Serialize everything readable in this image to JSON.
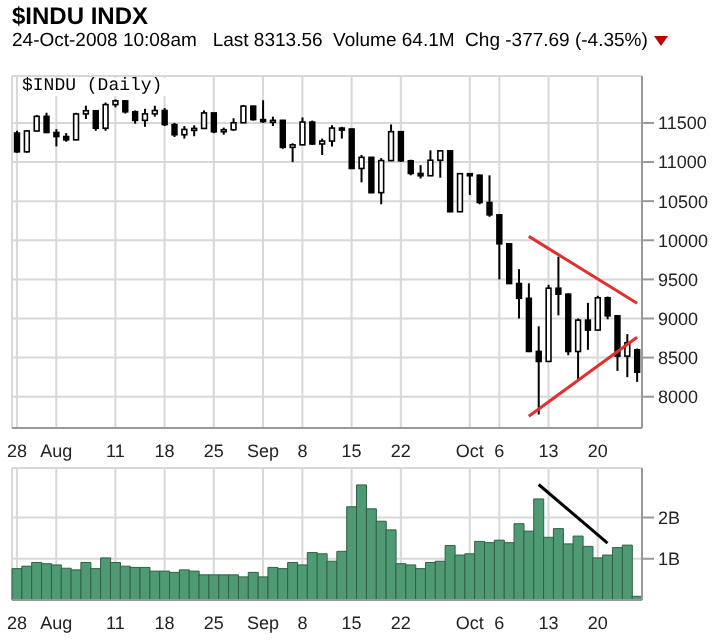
{
  "chart_data": [
    {
      "type": "candlestick",
      "title": "$INDU INDX",
      "subtitle": "24-Oct-2008 10:08am   Last 8313.56  Volume 64.1M  Chg -377.69 (-4.35%)",
      "annotations": [
        "$INDU (Daily)"
      ],
      "color": "#000000",
      "categories": [
        "28",
        null,
        null,
        null,
        "Aug",
        null,
        null,
        null,
        null,
        null,
        "11",
        null,
        null,
        null,
        null,
        "18",
        null,
        null,
        null,
        null,
        "25",
        null,
        null,
        null,
        null,
        "Sep",
        null,
        null,
        null,
        "8",
        null,
        null,
        null,
        null,
        "15",
        null,
        null,
        null,
        null,
        "22",
        null,
        null,
        null,
        null,
        null,
        null,
        "Oct",
        null,
        null,
        "6",
        null,
        null,
        null,
        null,
        "13",
        null,
        null,
        null,
        null,
        "20",
        null,
        null,
        null,
        null
      ],
      "ohlc": [
        [
          11370,
          11400,
          11120,
          11131
        ],
        [
          11131,
          11410,
          11120,
          11397
        ],
        [
          11397,
          11600,
          11390,
          11584
        ],
        [
          11584,
          11630,
          11370,
          11378
        ],
        [
          11378,
          11420,
          11200,
          11326
        ],
        [
          11326,
          11370,
          11260,
          11284
        ],
        [
          11284,
          11630,
          11280,
          11615
        ],
        [
          11615,
          11720,
          11550,
          11656
        ],
        [
          11656,
          11660,
          11400,
          11432
        ],
        [
          11432,
          11760,
          11400,
          11734
        ],
        [
          11734,
          11800,
          11700,
          11782
        ],
        [
          11782,
          11790,
          11620,
          11642
        ],
        [
          11642,
          11660,
          11490,
          11533
        ],
        [
          11533,
          11680,
          11450,
          11616
        ],
        [
          11616,
          11720,
          11580,
          11659
        ],
        [
          11659,
          11690,
          11460,
          11479
        ],
        [
          11479,
          11500,
          11320,
          11349
        ],
        [
          11349,
          11460,
          11300,
          11417
        ],
        [
          11417,
          11470,
          11330,
          11430
        ],
        [
          11430,
          11660,
          11420,
          11628
        ],
        [
          11628,
          11630,
          11370,
          11387
        ],
        [
          11387,
          11440,
          11350,
          11413
        ],
        [
          11413,
          11560,
          11400,
          11502
        ],
        [
          11502,
          11730,
          11500,
          11715
        ],
        [
          11715,
          11720,
          11530,
          11543
        ],
        [
          11543,
          11790,
          11500,
          11517
        ],
        [
          11517,
          11580,
          11460,
          11533
        ],
        [
          11533,
          11540,
          11170,
          11188
        ],
        [
          11188,
          11240,
          11000,
          11220
        ],
        [
          11220,
          11570,
          11220,
          11511
        ],
        [
          11511,
          11530,
          11220,
          11231
        ],
        [
          11231,
          11300,
          11090,
          11268
        ],
        [
          11268,
          11470,
          11200,
          11434
        ],
        [
          11434,
          11450,
          11300,
          11422
        ],
        [
          11422,
          11430,
          10910,
          10918
        ],
        [
          10918,
          11090,
          10740,
          11060
        ],
        [
          11060,
          11060,
          10600,
          10609
        ],
        [
          10609,
          11050,
          10460,
          11019
        ],
        [
          11019,
          11480,
          11010,
          11388
        ],
        [
          11388,
          11390,
          11000,
          11016
        ],
        [
          11016,
          11030,
          10830,
          10854
        ],
        [
          10854,
          10960,
          10790,
          10825
        ],
        [
          10825,
          11150,
          10820,
          11023
        ],
        [
          11023,
          11150,
          10800,
          11143
        ],
        [
          11143,
          11150,
          10360,
          10365
        ],
        [
          10365,
          10860,
          10360,
          10851
        ],
        [
          10851,
          10860,
          10580,
          10831
        ],
        [
          10831,
          10840,
          10460,
          10483
        ],
        [
          10483,
          10830,
          10300,
          10325
        ],
        [
          10325,
          10330,
          9500,
          9955
        ],
        [
          9955,
          9960,
          9440,
          9447
        ],
        [
          9447,
          9630,
          9000,
          9258
        ],
        [
          9258,
          9450,
          8570,
          8579
        ],
        [
          8579,
          8900,
          7773,
          8451
        ],
        [
          8451,
          9430,
          8450,
          9387
        ],
        [
          9387,
          9790,
          9040,
          9311
        ],
        [
          9311,
          9320,
          8530,
          8578
        ],
        [
          8578,
          9000,
          8200,
          8979
        ],
        [
          8979,
          9200,
          8600,
          8852
        ],
        [
          8852,
          9290,
          8850,
          9265
        ],
        [
          9265,
          9280,
          8990,
          9034
        ],
        [
          9034,
          9040,
          8330,
          8519
        ],
        [
          8519,
          8800,
          8250,
          8691
        ],
        [
          8600,
          8616,
          8190,
          8314
        ]
      ],
      "series": [
        {
          "type": "line",
          "color": "#e03030",
          "values": [
            null,
            null,
            null,
            null,
            null,
            null,
            null,
            null,
            null,
            null,
            null,
            null,
            null,
            null,
            null,
            null,
            null,
            null,
            null,
            null,
            null,
            null,
            null,
            null,
            null,
            null,
            null,
            null,
            null,
            null,
            null,
            null,
            null,
            null,
            null,
            null,
            null,
            null,
            null,
            null,
            null,
            null,
            null,
            null,
            null,
            null,
            null,
            null,
            null,
            null,
            null,
            null,
            10050,
            null,
            null,
            null,
            null,
            null,
            null,
            null,
            null,
            null,
            null,
            9194
          ]
        },
        {
          "type": "line",
          "color": "#e03030",
          "values": [
            null,
            null,
            null,
            null,
            null,
            null,
            null,
            null,
            null,
            null,
            null,
            null,
            null,
            null,
            null,
            null,
            null,
            null,
            null,
            null,
            null,
            null,
            null,
            null,
            null,
            null,
            null,
            null,
            null,
            null,
            null,
            null,
            null,
            null,
            null,
            null,
            null,
            null,
            null,
            null,
            null,
            null,
            null,
            null,
            null,
            null,
            null,
            null,
            null,
            null,
            null,
            null,
            7750,
            null,
            null,
            null,
            null,
            null,
            null,
            null,
            null,
            null,
            null,
            8760
          ]
        }
      ],
      "ylim": [
        7600,
        12100
      ],
      "yticks": [
        8000,
        8500,
        9000,
        9500,
        10000,
        10500,
        11000,
        11500
      ],
      "grid": true
    },
    {
      "type": "bar",
      "categories": [
        "28",
        null,
        null,
        null,
        "Aug",
        null,
        null,
        null,
        null,
        null,
        "11",
        null,
        null,
        null,
        null,
        "18",
        null,
        null,
        null,
        null,
        "25",
        null,
        null,
        null,
        null,
        "Sep",
        null,
        null,
        null,
        "8",
        null,
        null,
        null,
        null,
        "15",
        null,
        null,
        null,
        null,
        "22",
        null,
        null,
        null,
        null,
        null,
        null,
        "Oct",
        null,
        null,
        "6",
        null,
        null,
        null,
        null,
        "13",
        null,
        null,
        null,
        null,
        "20",
        null,
        null,
        null,
        null
      ],
      "series": [
        {
          "type": "bar",
          "color": "#4f9a72",
          "values": [
            0.76,
            0.82,
            0.91,
            0.88,
            0.85,
            0.77,
            0.73,
            0.91,
            0.76,
            1.02,
            0.91,
            0.82,
            0.79,
            0.79,
            0.7,
            0.7,
            0.67,
            0.73,
            0.7,
            0.61,
            0.61,
            0.61,
            0.61,
            0.56,
            0.67,
            0.56,
            0.79,
            0.76,
            0.91,
            0.85,
            1.15,
            1.12,
            0.94,
            1.18,
            2.26,
            2.79,
            2.21,
            1.91,
            1.7,
            0.88,
            0.85,
            0.76,
            0.91,
            0.94,
            1.32,
            1.09,
            1.12,
            1.42,
            1.39,
            1.45,
            1.39,
            1.85,
            1.67,
            2.45,
            1.52,
            1.73,
            1.36,
            1.55,
            1.3,
            1.02,
            1.09,
            1.27,
            1.33,
            0.09
          ]
        },
        {
          "type": "line",
          "color": "#000000",
          "values": [
            null,
            null,
            null,
            null,
            null,
            null,
            null,
            null,
            null,
            null,
            null,
            null,
            null,
            null,
            null,
            null,
            null,
            null,
            null,
            null,
            null,
            null,
            null,
            null,
            null,
            null,
            null,
            null,
            null,
            null,
            null,
            null,
            null,
            null,
            null,
            null,
            null,
            null,
            null,
            null,
            null,
            null,
            null,
            null,
            null,
            null,
            null,
            null,
            null,
            null,
            null,
            null,
            null,
            2.8,
            null,
            null,
            null,
            null,
            null,
            null,
            1.38,
            null,
            null,
            null
          ]
        }
      ],
      "ylim": [
        0,
        3.2
      ],
      "yticks": [
        {
          "value": 1,
          "label": "1B"
        },
        {
          "value": 2,
          "label": "2B"
        }
      ],
      "grid": true
    }
  ]
}
